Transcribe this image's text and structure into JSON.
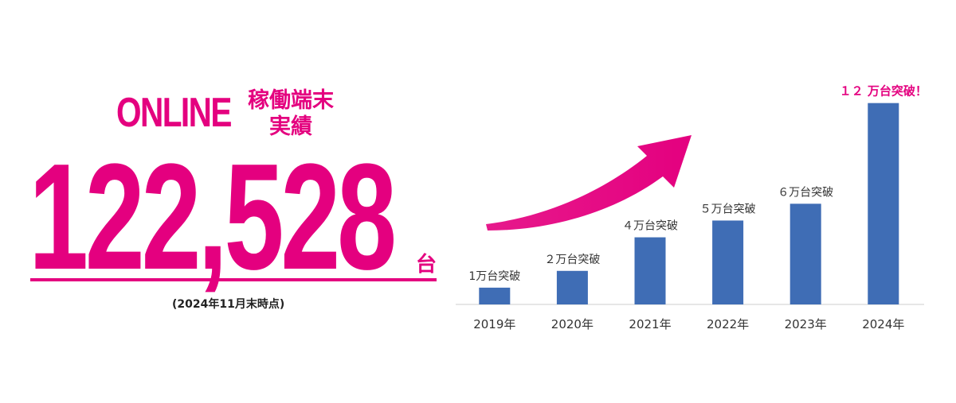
{
  "headline": {
    "online": "ONLINE",
    "subtitle_line1": "稼働端末",
    "subtitle_line2": "実績",
    "number": "122,528",
    "unit": "台",
    "as_of": "(2024年11月末時点)"
  },
  "colors": {
    "accent": "#e4007f",
    "bar": "#3f6db5",
    "axis": "#cccccc"
  },
  "chart_data": {
    "type": "bar",
    "categories": [
      "2019年",
      "2020年",
      "2021年",
      "2022年",
      "2023年",
      "2024年"
    ],
    "values": [
      1,
      2,
      4,
      5,
      6,
      12
    ],
    "data_labels": [
      "1万台突破",
      "２万台突破",
      "４万台突破",
      "５万台突破",
      "６万台突破",
      "１２ 万台突破！"
    ],
    "highlight_index": 5,
    "unit": "万台",
    "ylim": [
      0,
      13.5
    ],
    "grid": false,
    "trend_arrow": true
  }
}
